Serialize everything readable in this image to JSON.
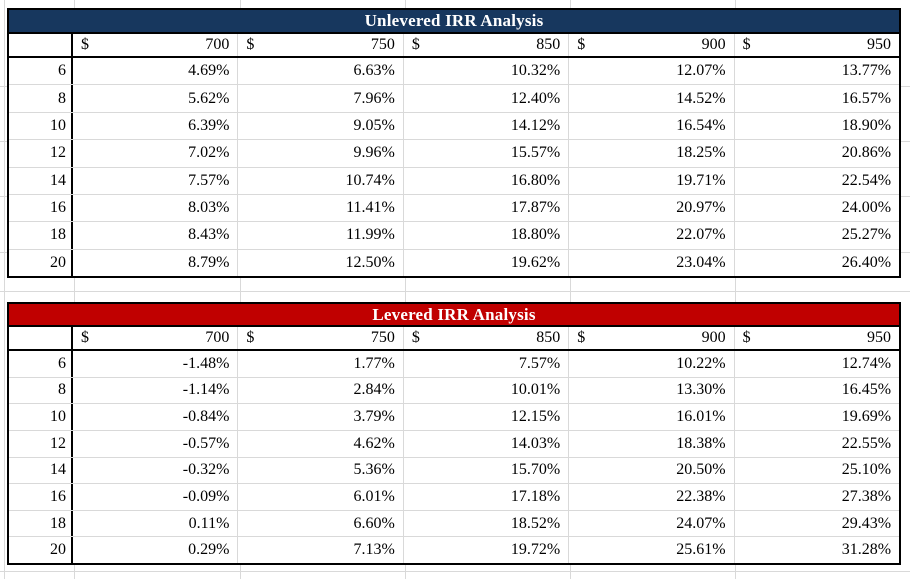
{
  "colors": {
    "unlevered_title_bg": "#17375E",
    "levered_title_bg": "#C00000",
    "title_text": "#FFFFFF",
    "grid_line": "#D9D9D9",
    "table_border": "#000000"
  },
  "tables": [
    {
      "title": "Unlevered IRR Analysis",
      "currency_symbol": "$",
      "column_headers": [
        "700",
        "750",
        "850",
        "900",
        "950"
      ],
      "row_labels": [
        "6",
        "8",
        "10",
        "12",
        "14",
        "16",
        "18",
        "20"
      ],
      "rows": [
        [
          "4.69%",
          "6.63%",
          "10.32%",
          "12.07%",
          "13.77%"
        ],
        [
          "5.62%",
          "7.96%",
          "12.40%",
          "14.52%",
          "16.57%"
        ],
        [
          "6.39%",
          "9.05%",
          "14.12%",
          "16.54%",
          "18.90%"
        ],
        [
          "7.02%",
          "9.96%",
          "15.57%",
          "18.25%",
          "20.86%"
        ],
        [
          "7.57%",
          "10.74%",
          "16.80%",
          "19.71%",
          "22.54%"
        ],
        [
          "8.03%",
          "11.41%",
          "17.87%",
          "20.97%",
          "24.00%"
        ],
        [
          "8.43%",
          "11.99%",
          "18.80%",
          "22.07%",
          "25.27%"
        ],
        [
          "8.79%",
          "12.50%",
          "19.62%",
          "23.04%",
          "26.40%"
        ]
      ]
    },
    {
      "title": "Levered IRR Analysis",
      "currency_symbol": "$",
      "column_headers": [
        "700",
        "750",
        "850",
        "900",
        "950"
      ],
      "row_labels": [
        "6",
        "8",
        "10",
        "12",
        "14",
        "16",
        "18",
        "20"
      ],
      "rows": [
        [
          "-1.48%",
          "1.77%",
          "7.57%",
          "10.22%",
          "12.74%"
        ],
        [
          "-1.14%",
          "2.84%",
          "10.01%",
          "13.30%",
          "16.45%"
        ],
        [
          "-0.84%",
          "3.79%",
          "12.15%",
          "16.01%",
          "19.69%"
        ],
        [
          "-0.57%",
          "4.62%",
          "14.03%",
          "18.38%",
          "22.55%"
        ],
        [
          "-0.32%",
          "5.36%",
          "15.70%",
          "20.50%",
          "25.10%"
        ],
        [
          "-0.09%",
          "6.01%",
          "17.18%",
          "22.38%",
          "27.38%"
        ],
        [
          "0.11%",
          "6.60%",
          "18.52%",
          "24.07%",
          "29.43%"
        ],
        [
          "0.29%",
          "7.13%",
          "19.72%",
          "25.61%",
          "31.28%"
        ]
      ]
    }
  ]
}
